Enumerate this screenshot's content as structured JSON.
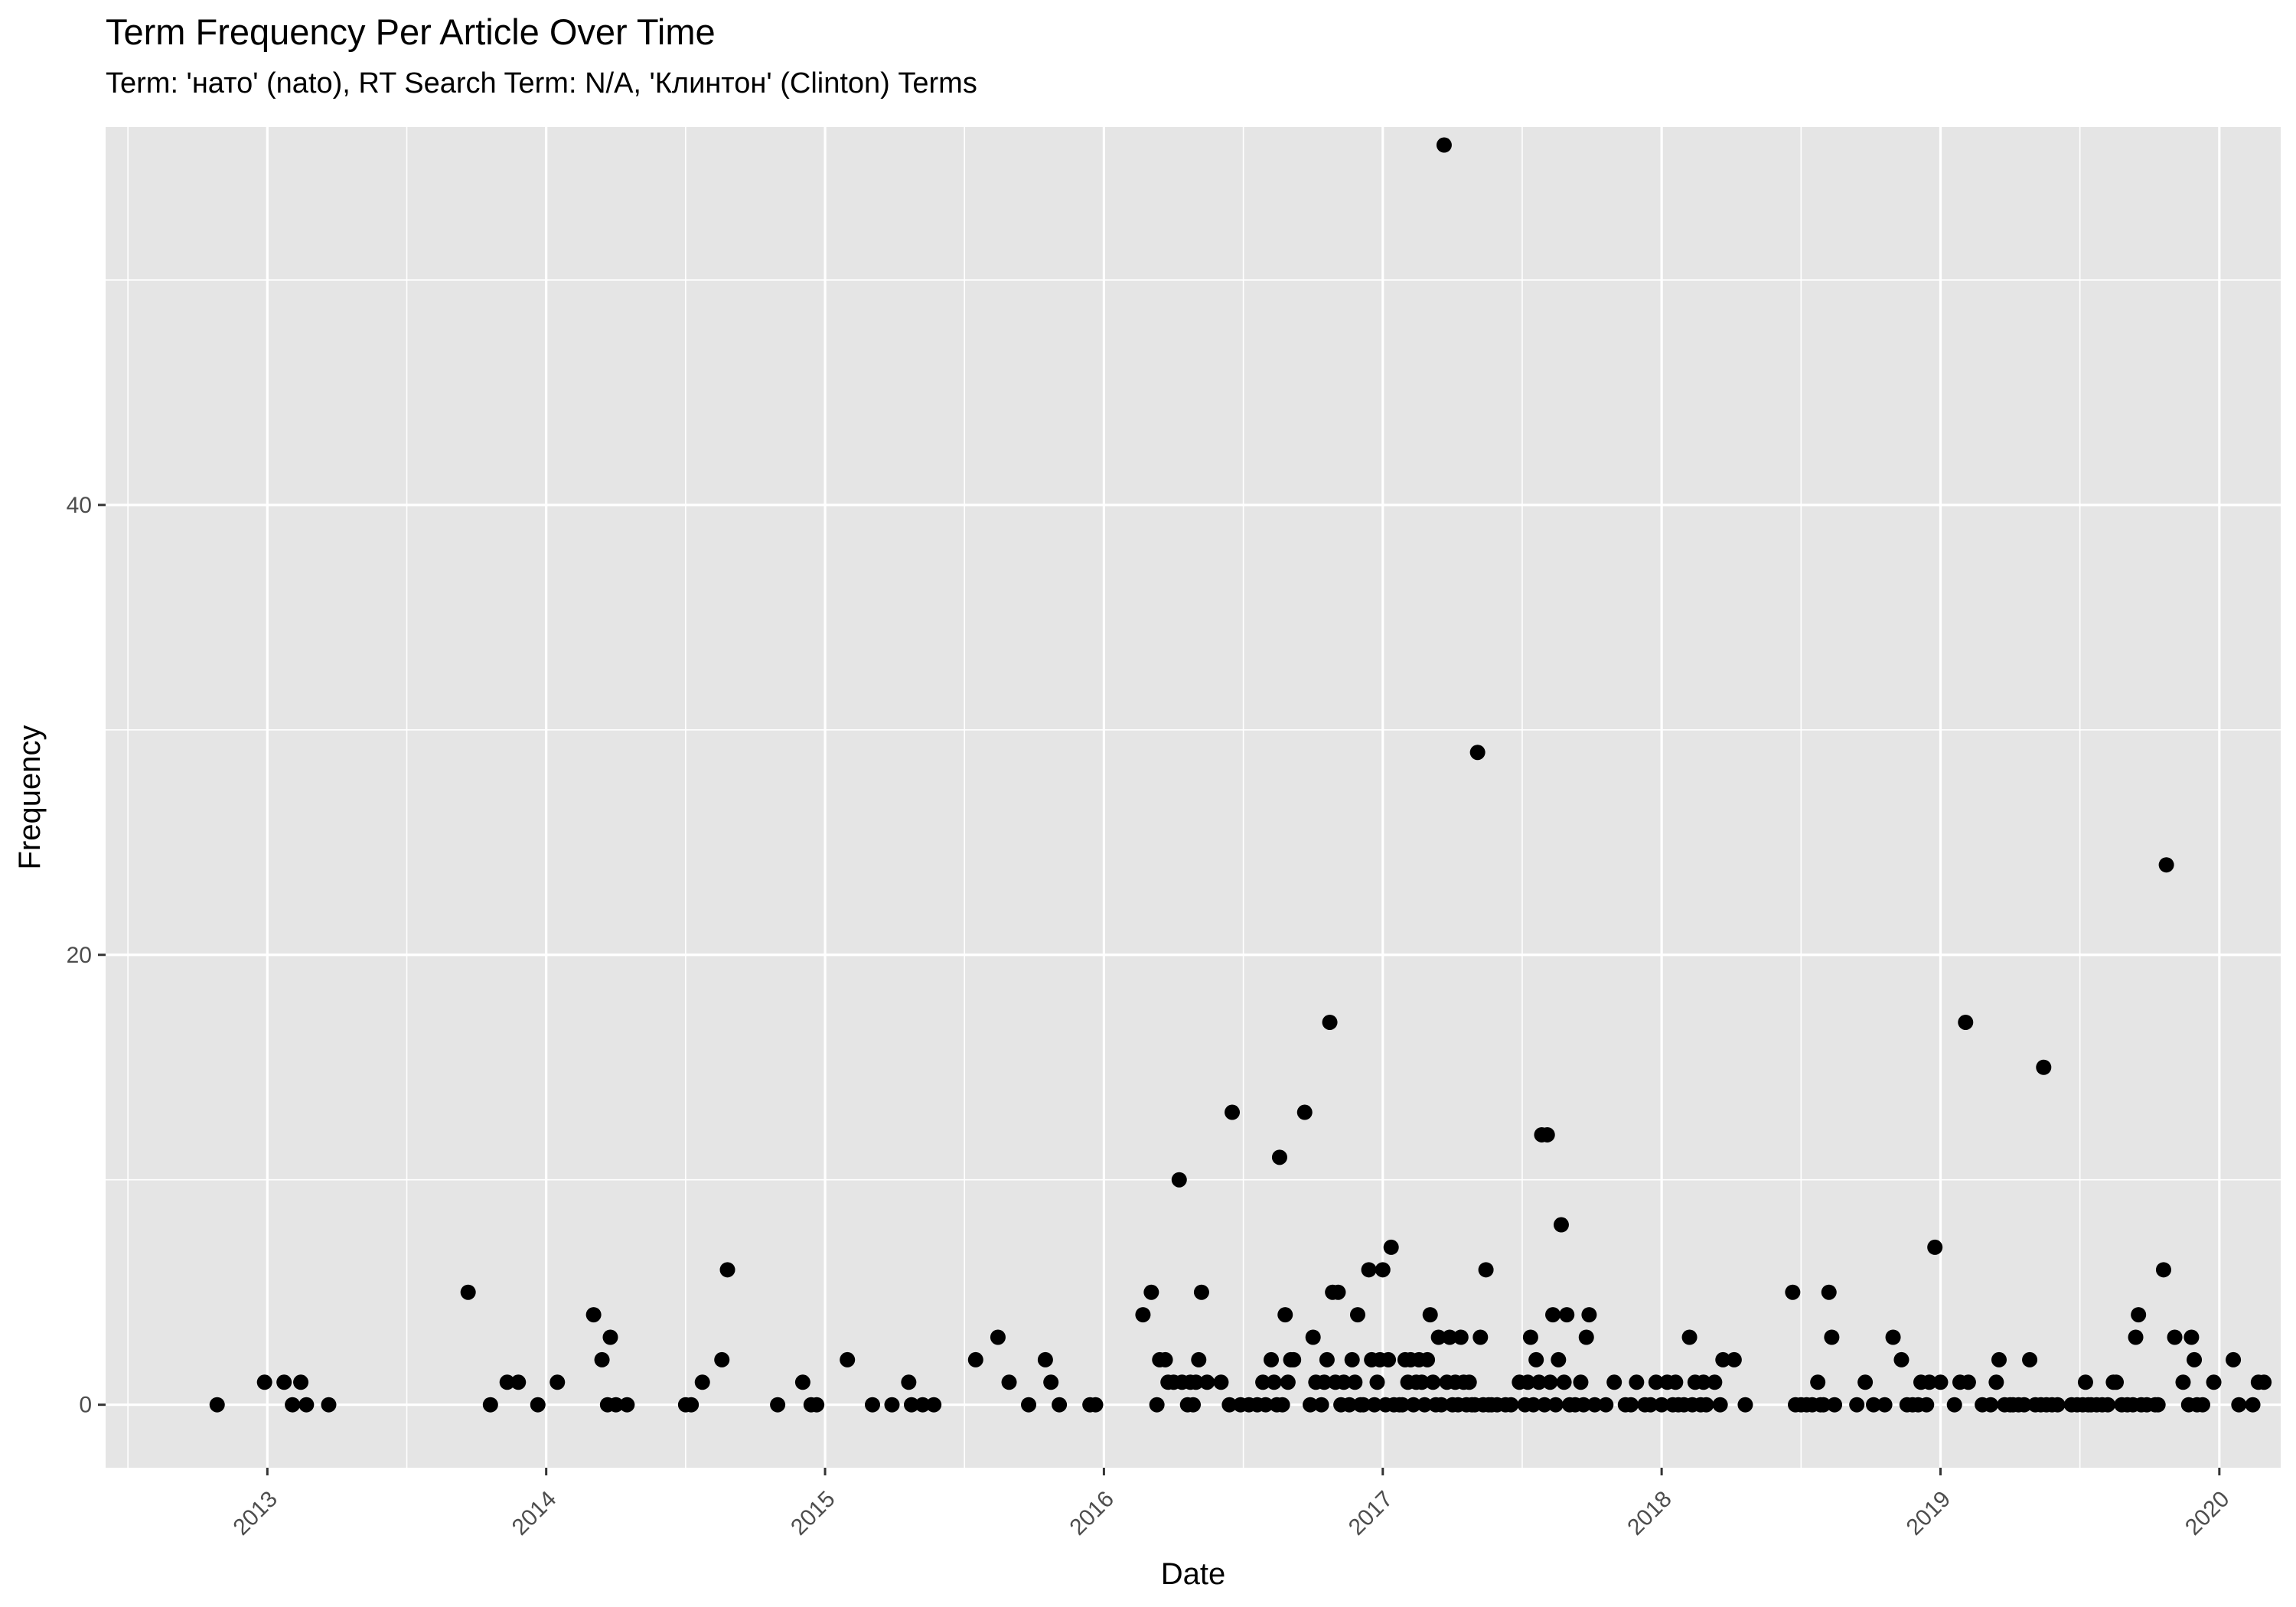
{
  "chart_data": {
    "type": "scatter",
    "title": "Term Frequency Per Article Over Time",
    "subtitle": "Term: 'нато' (nato), RT Search Term: N/A, 'Клинтон' (Clinton) Terms",
    "xlabel": "Date",
    "ylabel": "Frequency",
    "x_ticks": [
      "2013",
      "2014",
      "2015",
      "2016",
      "2017",
      "2018",
      "2019",
      "2020"
    ],
    "y_ticks": [
      "0",
      "20",
      "40"
    ],
    "xlim": [
      2012.42,
      2020.22
    ],
    "ylim": [
      -2.8,
      56.8
    ],
    "grid": true,
    "background": "#e5e5e5",
    "grid_color": "#ffffff",
    "point_color": "#000000",
    "points": [
      [
        2012.82,
        0
      ],
      [
        2012.99,
        1
      ],
      [
        2013.06,
        1
      ],
      [
        2013.09,
        0
      ],
      [
        2013.12,
        1
      ],
      [
        2013.14,
        0
      ],
      [
        2013.22,
        0
      ],
      [
        2013.72,
        5
      ],
      [
        2013.8,
        0
      ],
      [
        2013.86,
        1
      ],
      [
        2013.9,
        1
      ],
      [
        2013.97,
        0
      ],
      [
        2014.04,
        1
      ],
      [
        2014.17,
        4
      ],
      [
        2014.2,
        2
      ],
      [
        2014.22,
        0
      ],
      [
        2014.23,
        3
      ],
      [
        2014.25,
        0
      ],
      [
        2014.29,
        0
      ],
      [
        2014.5,
        0
      ],
      [
        2014.52,
        0
      ],
      [
        2014.56,
        1
      ],
      [
        2014.63,
        2
      ],
      [
        2014.65,
        6
      ],
      [
        2014.83,
        0
      ],
      [
        2014.92,
        1
      ],
      [
        2014.95,
        0
      ],
      [
        2014.97,
        0
      ],
      [
        2015.08,
        2
      ],
      [
        2015.17,
        0
      ],
      [
        2015.24,
        0
      ],
      [
        2015.3,
        1
      ],
      [
        2015.31,
        0
      ],
      [
        2015.35,
        0
      ],
      [
        2015.39,
        0
      ],
      [
        2015.54,
        2
      ],
      [
        2015.62,
        3
      ],
      [
        2015.66,
        1
      ],
      [
        2015.73,
        0
      ],
      [
        2015.79,
        2
      ],
      [
        2015.81,
        1
      ],
      [
        2015.84,
        0
      ],
      [
        2015.95,
        0
      ],
      [
        2015.97,
        0
      ],
      [
        2016.14,
        4
      ],
      [
        2016.17,
        5
      ],
      [
        2016.19,
        0
      ],
      [
        2016.2,
        2
      ],
      [
        2016.22,
        2
      ],
      [
        2016.23,
        1
      ],
      [
        2016.25,
        1
      ],
      [
        2016.27,
        10
      ],
      [
        2016.28,
        1
      ],
      [
        2016.3,
        0
      ],
      [
        2016.31,
        1
      ],
      [
        2016.32,
        0
      ],
      [
        2016.33,
        1
      ],
      [
        2016.34,
        2
      ],
      [
        2016.35,
        5
      ],
      [
        2016.37,
        1
      ],
      [
        2016.42,
        1
      ],
      [
        2016.45,
        0
      ],
      [
        2016.46,
        13
      ],
      [
        2016.49,
        0
      ],
      [
        2016.52,
        0
      ],
      [
        2016.55,
        0
      ],
      [
        2016.57,
        1
      ],
      [
        2016.58,
        0
      ],
      [
        2016.6,
        2
      ],
      [
        2016.61,
        1
      ],
      [
        2016.62,
        0
      ],
      [
        2016.63,
        11
      ],
      [
        2016.64,
        0
      ],
      [
        2016.65,
        4
      ],
      [
        2016.66,
        1
      ],
      [
        2016.67,
        2
      ],
      [
        2016.68,
        2
      ],
      [
        2016.72,
        13
      ],
      [
        2016.74,
        0
      ],
      [
        2016.75,
        3
      ],
      [
        2016.76,
        1
      ],
      [
        2016.78,
        0
      ],
      [
        2016.79,
        1
      ],
      [
        2016.8,
        2
      ],
      [
        2016.81,
        17
      ],
      [
        2016.82,
        5
      ],
      [
        2016.83,
        1
      ],
      [
        2016.84,
        5
      ],
      [
        2016.85,
        0
      ],
      [
        2016.86,
        1
      ],
      [
        2016.88,
        0
      ],
      [
        2016.89,
        2
      ],
      [
        2016.9,
        1
      ],
      [
        2016.91,
        4
      ],
      [
        2016.92,
        0
      ],
      [
        2016.93,
        0
      ],
      [
        2016.95,
        6
      ],
      [
        2016.96,
        2
      ],
      [
        2016.97,
        0
      ],
      [
        2016.98,
        1
      ],
      [
        2016.99,
        2
      ],
      [
        2017.0,
        6
      ],
      [
        2017.01,
        0
      ],
      [
        2017.02,
        2
      ],
      [
        2017.03,
        7
      ],
      [
        2017.04,
        0
      ],
      [
        2017.06,
        0
      ],
      [
        2017.07,
        0
      ],
      [
        2017.08,
        2
      ],
      [
        2017.09,
        1
      ],
      [
        2017.1,
        2
      ],
      [
        2017.11,
        0
      ],
      [
        2017.12,
        1
      ],
      [
        2017.13,
        2
      ],
      [
        2017.14,
        1
      ],
      [
        2017.15,
        0
      ],
      [
        2017.16,
        2
      ],
      [
        2017.17,
        4
      ],
      [
        2017.18,
        1
      ],
      [
        2017.19,
        0
      ],
      [
        2017.2,
        3
      ],
      [
        2017.21,
        0
      ],
      [
        2017.22,
        56
      ],
      [
        2017.23,
        1
      ],
      [
        2017.24,
        3
      ],
      [
        2017.25,
        0
      ],
      [
        2017.26,
        1
      ],
      [
        2017.27,
        0
      ],
      [
        2017.28,
        3
      ],
      [
        2017.29,
        1
      ],
      [
        2017.3,
        0
      ],
      [
        2017.31,
        1
      ],
      [
        2017.32,
        0
      ],
      [
        2017.33,
        0
      ],
      [
        2017.34,
        29
      ],
      [
        2017.35,
        3
      ],
      [
        2017.36,
        0
      ],
      [
        2017.37,
        6
      ],
      [
        2017.38,
        0
      ],
      [
        2017.39,
        0
      ],
      [
        2017.41,
        0
      ],
      [
        2017.44,
        0
      ],
      [
        2017.46,
        0
      ],
      [
        2017.49,
        1
      ],
      [
        2017.51,
        0
      ],
      [
        2017.52,
        1
      ],
      [
        2017.53,
        3
      ],
      [
        2017.54,
        0
      ],
      [
        2017.55,
        2
      ],
      [
        2017.56,
        1
      ],
      [
        2017.57,
        12
      ],
      [
        2017.58,
        0
      ],
      [
        2017.59,
        12
      ],
      [
        2017.6,
        1
      ],
      [
        2017.61,
        4
      ],
      [
        2017.62,
        0
      ],
      [
        2017.63,
        2
      ],
      [
        2017.64,
        8
      ],
      [
        2017.65,
        1
      ],
      [
        2017.66,
        4
      ],
      [
        2017.67,
        0
      ],
      [
        2017.69,
        0
      ],
      [
        2017.71,
        1
      ],
      [
        2017.72,
        0
      ],
      [
        2017.73,
        3
      ],
      [
        2017.74,
        4
      ],
      [
        2017.76,
        0
      ],
      [
        2017.8,
        0
      ],
      [
        2017.83,
        1
      ],
      [
        2017.87,
        0
      ],
      [
        2017.89,
        0
      ],
      [
        2017.91,
        1
      ],
      [
        2017.94,
        0
      ],
      [
        2017.96,
        0
      ],
      [
        2017.98,
        1
      ],
      [
        2018.0,
        0
      ],
      [
        2018.02,
        1
      ],
      [
        2018.04,
        0
      ],
      [
        2018.05,
        1
      ],
      [
        2018.06,
        0
      ],
      [
        2018.08,
        0
      ],
      [
        2018.1,
        3
      ],
      [
        2018.11,
        0
      ],
      [
        2018.12,
        1
      ],
      [
        2018.14,
        0
      ],
      [
        2018.15,
        1
      ],
      [
        2018.16,
        0
      ],
      [
        2018.19,
        1
      ],
      [
        2018.21,
        0
      ],
      [
        2018.22,
        2
      ],
      [
        2018.26,
        2
      ],
      [
        2018.3,
        0
      ],
      [
        2018.47,
        5
      ],
      [
        2018.48,
        0
      ],
      [
        2018.5,
        0
      ],
      [
        2018.52,
        0
      ],
      [
        2018.54,
        0
      ],
      [
        2018.56,
        1
      ],
      [
        2018.57,
        0
      ],
      [
        2018.58,
        0
      ],
      [
        2018.6,
        5
      ],
      [
        2018.61,
        3
      ],
      [
        2018.62,
        0
      ],
      [
        2018.7,
        0
      ],
      [
        2018.73,
        1
      ],
      [
        2018.76,
        0
      ],
      [
        2018.8,
        0
      ],
      [
        2018.83,
        3
      ],
      [
        2018.86,
        2
      ],
      [
        2018.88,
        0
      ],
      [
        2018.9,
        0
      ],
      [
        2018.92,
        0
      ],
      [
        2018.93,
        1
      ],
      [
        2018.95,
        0
      ],
      [
        2018.96,
        1
      ],
      [
        2018.98,
        7
      ],
      [
        2019.0,
        1
      ],
      [
        2019.05,
        0
      ],
      [
        2019.07,
        1
      ],
      [
        2019.09,
        17
      ],
      [
        2019.1,
        1
      ],
      [
        2019.15,
        0
      ],
      [
        2019.18,
        0
      ],
      [
        2019.2,
        1
      ],
      [
        2019.21,
        2
      ],
      [
        2019.23,
        0
      ],
      [
        2019.25,
        0
      ],
      [
        2019.26,
        0
      ],
      [
        2019.28,
        0
      ],
      [
        2019.3,
        0
      ],
      [
        2019.32,
        2
      ],
      [
        2019.34,
        0
      ],
      [
        2019.36,
        0
      ],
      [
        2019.37,
        15
      ],
      [
        2019.38,
        0
      ],
      [
        2019.4,
        0
      ],
      [
        2019.42,
        0
      ],
      [
        2019.47,
        0
      ],
      [
        2019.49,
        0
      ],
      [
        2019.51,
        0
      ],
      [
        2019.52,
        1
      ],
      [
        2019.53,
        0
      ],
      [
        2019.54,
        0
      ],
      [
        2019.56,
        0
      ],
      [
        2019.58,
        0
      ],
      [
        2019.6,
        0
      ],
      [
        2019.62,
        1
      ],
      [
        2019.63,
        1
      ],
      [
        2019.65,
        0
      ],
      [
        2019.67,
        0
      ],
      [
        2019.69,
        0
      ],
      [
        2019.7,
        3
      ],
      [
        2019.71,
        4
      ],
      [
        2019.72,
        0
      ],
      [
        2019.74,
        0
      ],
      [
        2019.77,
        0
      ],
      [
        2019.78,
        0
      ],
      [
        2019.8,
        6
      ],
      [
        2019.81,
        24
      ],
      [
        2019.84,
        3
      ],
      [
        2019.87,
        1
      ],
      [
        2019.89,
        0
      ],
      [
        2019.9,
        3
      ],
      [
        2019.91,
        2
      ],
      [
        2019.92,
        0
      ],
      [
        2019.94,
        0
      ],
      [
        2019.98,
        1
      ],
      [
        2020.05,
        2
      ],
      [
        2020.07,
        0
      ],
      [
        2020.12,
        0
      ],
      [
        2020.14,
        1
      ],
      [
        2020.16,
        1
      ]
    ]
  }
}
